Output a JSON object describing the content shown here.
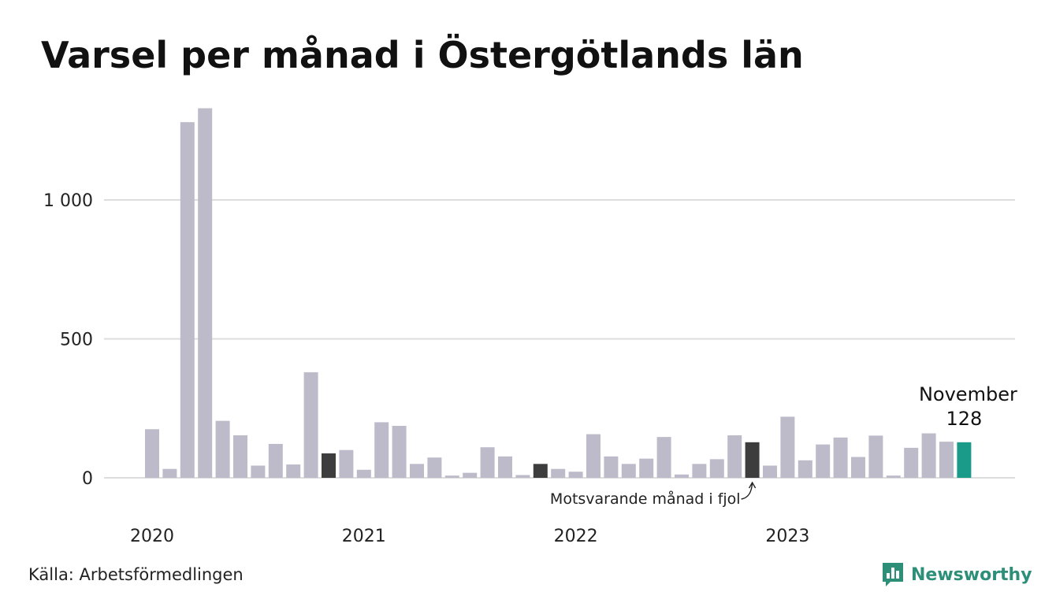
{
  "title": "Varsel per månad i Östergötlands län",
  "source": "Källa: Arbetsförmedlingen",
  "brand": {
    "name": "Newsworthy",
    "icon": "bar-chart-speech-bubble-icon"
  },
  "colors": {
    "bar": "#bdbbc9",
    "comparison_bar": "#3d3d3d",
    "highlight_bar": "#1a9b8a",
    "grid": "#dddddd",
    "brand": "#2e8f79"
  },
  "chart_data": {
    "type": "bar",
    "x_tick_labels": [
      "2020",
      "2021",
      "2022",
      "2023"
    ],
    "y_ticks": [
      0,
      500,
      1000
    ],
    "y_tick_labels": [
      "0",
      "500",
      "1 000"
    ],
    "ylim": [
      0,
      1350
    ],
    "grid": true,
    "categories": [
      "2020-01",
      "2020-02",
      "2020-03",
      "2020-04",
      "2020-05",
      "2020-06",
      "2020-07",
      "2020-08",
      "2020-09",
      "2020-10",
      "2020-11",
      "2020-12",
      "2021-01",
      "2021-02",
      "2021-03",
      "2021-04",
      "2021-05",
      "2021-06",
      "2021-07",
      "2021-08",
      "2021-09",
      "2021-10",
      "2021-11",
      "2021-12",
      "2022-01",
      "2022-02",
      "2022-03",
      "2022-04",
      "2022-05",
      "2022-06",
      "2022-07",
      "2022-08",
      "2022-09",
      "2022-10",
      "2022-11",
      "2022-12",
      "2023-01",
      "2023-02",
      "2023-03",
      "2023-04",
      "2023-05",
      "2023-06",
      "2023-07",
      "2023-08",
      "2023-09",
      "2023-10",
      "2023-11"
    ],
    "values": [
      175,
      32,
      1280,
      1330,
      205,
      153,
      44,
      122,
      48,
      380,
      88,
      100,
      29,
      200,
      187,
      50,
      73,
      8,
      18,
      110,
      77,
      10,
      50,
      32,
      22,
      157,
      77,
      50,
      69,
      147,
      12,
      50,
      67,
      153,
      128,
      44,
      220,
      63,
      120,
      145,
      75,
      152,
      8,
      108,
      160,
      130,
      128
    ],
    "comparison_months": [
      "2020-11",
      "2021-11",
      "2022-11"
    ],
    "highlight": {
      "category": "2023-11",
      "month_label": "November",
      "value_label": "128"
    },
    "annotation": "Motsvarande månad i fjol"
  }
}
